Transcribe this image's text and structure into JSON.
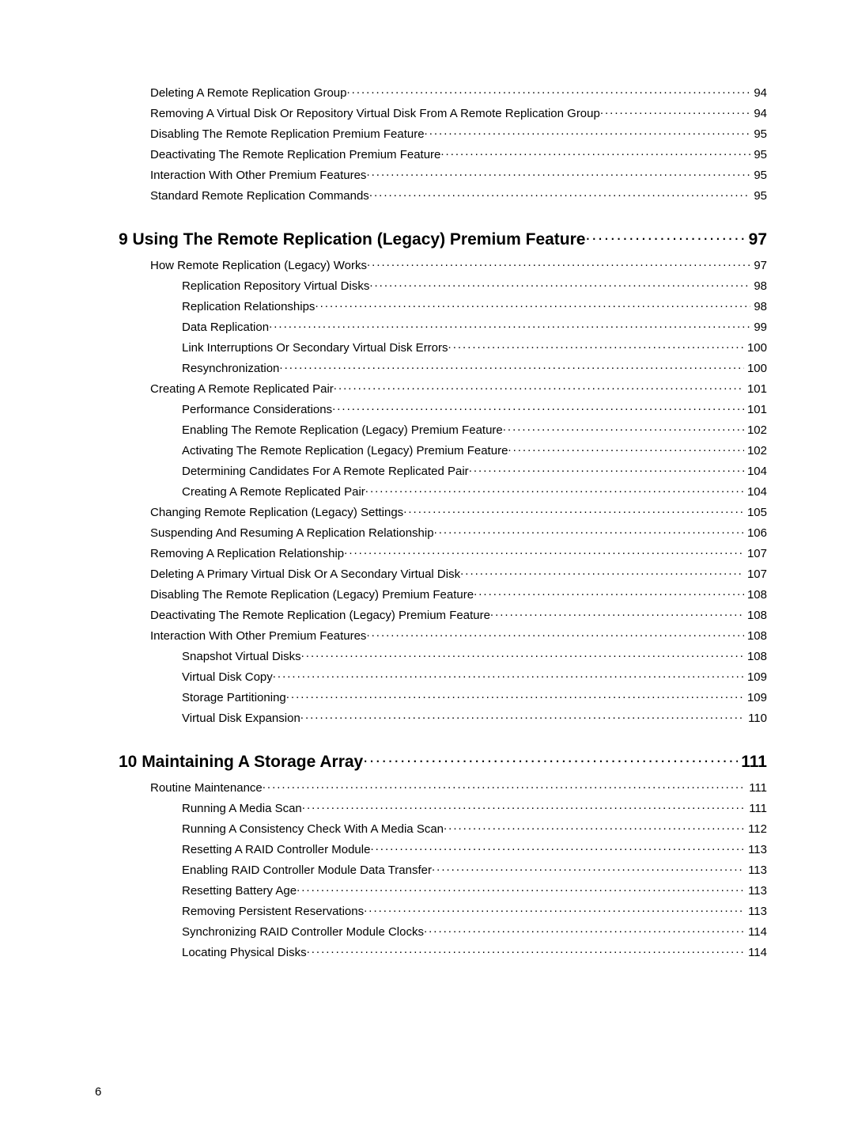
{
  "footer_page": "6",
  "entries": [
    {
      "level": "level1",
      "title": "Deleting A Remote Replication Group",
      "page": "94"
    },
    {
      "level": "level1",
      "title": "Removing A Virtual Disk Or Repository Virtual Disk From A Remote Replication Group",
      "page": "94"
    },
    {
      "level": "level1",
      "title": "Disabling The Remote Replication Premium Feature",
      "page": "95"
    },
    {
      "level": "level1",
      "title": "Deactivating The Remote Replication Premium Feature",
      "page": "95"
    },
    {
      "level": "level1",
      "title": "Interaction With Other Premium Features",
      "page": "95"
    },
    {
      "level": "level1",
      "title": "Standard Remote Replication Commands",
      "page": " 95"
    },
    {
      "level": "chapter",
      "title": "9 Using The Remote Replication (Legacy) Premium Feature",
      "page": " 97"
    },
    {
      "level": "level1",
      "title": "How Remote Replication (Legacy) Works",
      "page": "97"
    },
    {
      "level": "level2",
      "title": "Replication Repository Virtual Disks",
      "page": "98"
    },
    {
      "level": "level2",
      "title": "Replication Relationships",
      "page": "98"
    },
    {
      "level": "level2",
      "title": "Data Replication",
      "page": "99"
    },
    {
      "level": "level2",
      "title": "Link Interruptions Or Secondary Virtual Disk Errors",
      "page": "100"
    },
    {
      "level": "level2",
      "title": "Resynchronization",
      "page": " 100"
    },
    {
      "level": "level1",
      "title": "Creating A Remote Replicated Pair",
      "page": " 101"
    },
    {
      "level": "level2",
      "title": "Performance Considerations",
      "page": " 101"
    },
    {
      "level": "level2",
      "title": "Enabling The Remote Replication (Legacy) Premium Feature",
      "page": "102"
    },
    {
      "level": "level2",
      "title": "Activating The Remote Replication (Legacy) Premium Feature",
      "page": "102"
    },
    {
      "level": "level2",
      "title": "Determining Candidates For A Remote Replicated Pair",
      "page": "104"
    },
    {
      "level": "level2",
      "title": "Creating A Remote Replicated Pair",
      "page": "104"
    },
    {
      "level": "level1",
      "title": "Changing Remote Replication (Legacy) Settings",
      "page": "105"
    },
    {
      "level": "level1",
      "title": "Suspending And Resuming A Replication Relationship",
      "page": "106"
    },
    {
      "level": "level1",
      "title": "Removing A Replication Relationship",
      "page": "107"
    },
    {
      "level": "level1",
      "title": "Deleting A Primary Virtual Disk Or A Secondary Virtual Disk",
      "page": "107"
    },
    {
      "level": "level1",
      "title": "Disabling The Remote Replication (Legacy) Premium Feature",
      "page": " 108"
    },
    {
      "level": "level1",
      "title": "Deactivating The Remote Replication (Legacy) Premium Feature",
      "page": " 108"
    },
    {
      "level": "level1",
      "title": "Interaction With Other Premium Features",
      "page": "108"
    },
    {
      "level": "level2",
      "title": "Snapshot Virtual Disks",
      "page": "108"
    },
    {
      "level": "level2",
      "title": "Virtual Disk Copy",
      "page": "109"
    },
    {
      "level": "level2",
      "title": "Storage Partitioning",
      "page": " 109"
    },
    {
      "level": "level2",
      "title": "Virtual Disk Expansion",
      "page": " 110"
    },
    {
      "level": "chapter",
      "title": "10 Maintaining A Storage Array",
      "page": " 111"
    },
    {
      "level": "level1",
      "title": "Routine Maintenance",
      "page": "111"
    },
    {
      "level": "level2",
      "title": "Running A Media Scan",
      "page": " 111"
    },
    {
      "level": "level2",
      "title": "Running A Consistency Check With A Media Scan",
      "page": " 112"
    },
    {
      "level": "level2",
      "title": "Resetting A RAID Controller Module",
      "page": "113"
    },
    {
      "level": "level2",
      "title": "Enabling RAID Controller Module Data Transfer",
      "page": "113"
    },
    {
      "level": "level2",
      "title": "Resetting Battery Age",
      "page": " 113"
    },
    {
      "level": "level2",
      "title": "Removing Persistent Reservations",
      "page": " 113"
    },
    {
      "level": "level2",
      "title": "Synchronizing RAID Controller Module Clocks",
      "page": " 114"
    },
    {
      "level": "level2",
      "title": "Locating Physical Disks",
      "page": "114"
    }
  ]
}
